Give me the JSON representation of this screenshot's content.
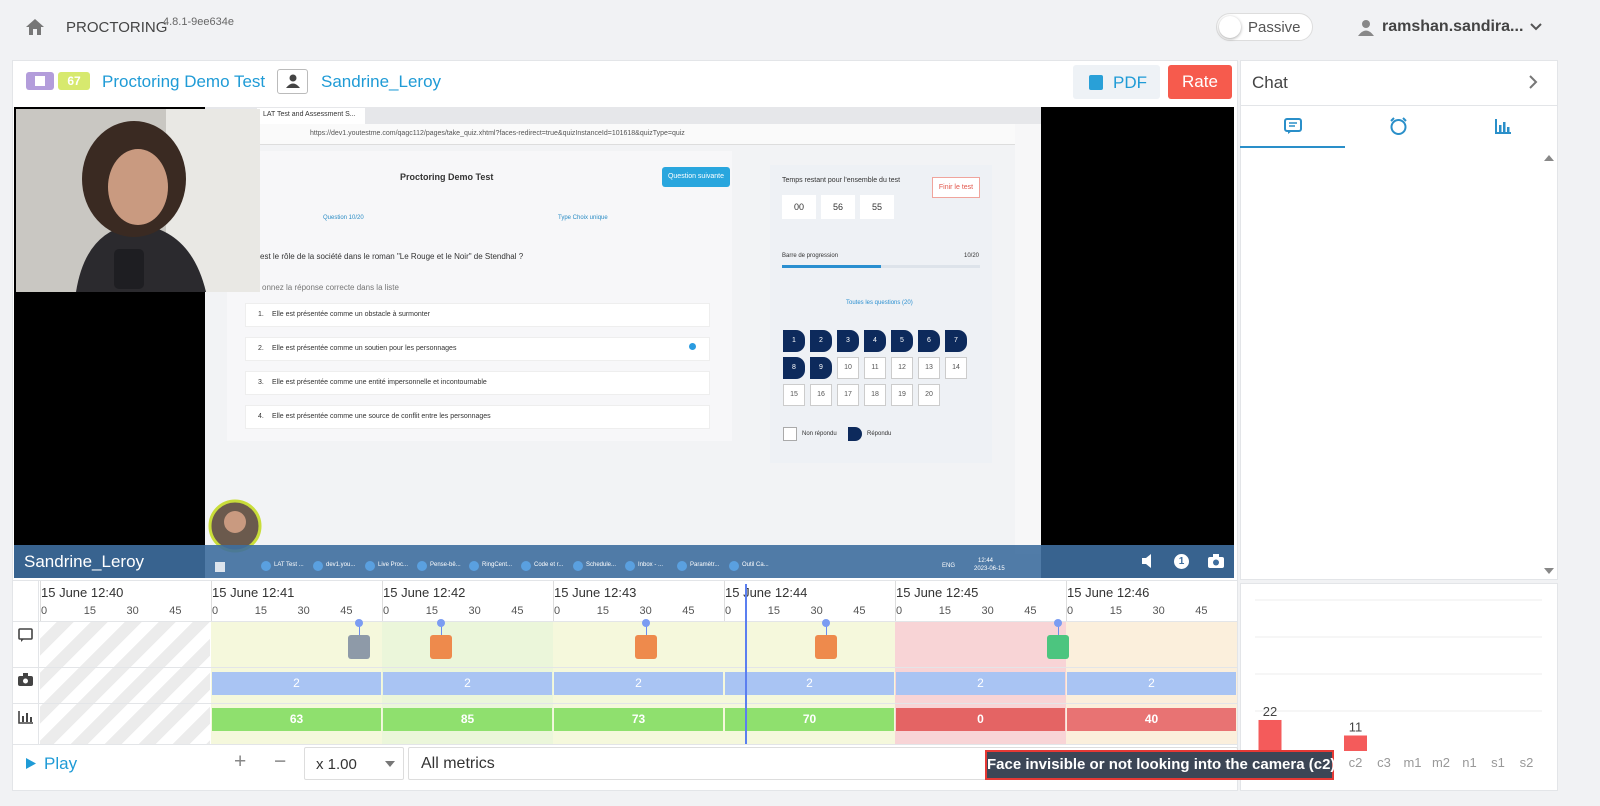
{
  "header": {
    "app": "PROCTORING",
    "version": "4.8.1-9ee634e",
    "mode": "Passive",
    "user": "ramshan.sandira..."
  },
  "toolbar": {
    "badge": "67",
    "test": "Proctoring Demo Test",
    "student": "Sandrine_Leroy",
    "pdf": "PDF",
    "rate": "Rate"
  },
  "screen": {
    "tab": "LAT Test and Assessment S...",
    "url": "https://dev1.youtestme.com/qagc112/pages/take_quiz.xhtml?faces-redirect=true&quizInstanceId=101618&quizType=quiz",
    "title": "Proctoring Demo Test",
    "next": "Question suivante",
    "question_no": "Question 10/20",
    "type": "Type Choix unique",
    "question": "est le rôle de la société dans le roman \"Le Rouge et le Noir\" de Stendhal ?",
    "instruction": "onnez la réponse correcte dans la liste",
    "options": [
      {
        "n": "1.",
        "text": "Elle est présentée comme un obstacle à surmonter"
      },
      {
        "n": "2.",
        "text": "Elle est présentée comme un soutien pour les personnages"
      },
      {
        "n": "3.",
        "text": "Elle est présentée comme une entité impersonnelle et incontournable"
      },
      {
        "n": "4.",
        "text": "Elle est présentée comme une source de conflit entre les personnages"
      }
    ],
    "timer_label": "Temps restant pour l'ensemble du test",
    "finish": "Finir le test",
    "timer": [
      "00",
      "56",
      "55"
    ],
    "progress_label": "Barre de progression",
    "progress": "10/20",
    "all_questions": "Toutes les questions (20)",
    "answered": [
      1,
      2,
      3,
      4,
      5,
      6,
      7,
      8,
      9
    ],
    "unanswered": [
      10,
      11,
      12,
      13,
      14,
      15,
      16,
      17,
      18,
      19,
      20
    ],
    "legend": [
      "Non répondu",
      "Répondu"
    ],
    "taskbar": [
      "LAT Test ...",
      "dev1.you...",
      "Live Proc...",
      "Pense-bê...",
      "RingCent...",
      "Code et r...",
      "Schedule...",
      "Inbox - ...",
      "Paramètr...",
      "Outil Ca..."
    ],
    "lang": "ENG",
    "clock": [
      "12:44",
      "2023-06-15"
    ]
  },
  "video": {
    "student": "Sandrine_Leroy",
    "flags": "1"
  },
  "timeline": {
    "minutes": [
      "15 June 12:40",
      "15 June 12:41",
      "15 June 12:42",
      "15 June 12:43",
      "15 June 12:44",
      "15 June 12:45",
      "15 June 12:46"
    ],
    "seconds": [
      0,
      15,
      30,
      45
    ],
    "camera": [
      2,
      2,
      2,
      2,
      2,
      2
    ],
    "metrics": [
      63,
      85,
      73,
      70,
      0,
      40
    ],
    "metric_colors": [
      "#8fe06e",
      "#8fe06e",
      "#8fe06e",
      "#8fe06e",
      "#e46464",
      "#e87373"
    ]
  },
  "controls": {
    "play": "Play",
    "zoom_in": "+",
    "zoom_out": "−",
    "speed": "x 1.00",
    "filter": "All metrics"
  },
  "tooltip": "Face invisible or not looking into the camera (c2)",
  "chat": {
    "title": "Chat"
  },
  "chart_data": {
    "type": "bar",
    "categories": [
      null,
      null,
      null,
      "c2",
      "c3",
      "m1",
      "m2",
      "n1",
      "s1",
      "s2"
    ],
    "values": [
      22,
      null,
      null,
      11,
      null,
      null,
      null,
      null,
      null,
      null
    ],
    "color": "#f45b5b",
    "ylim": [
      0,
      100
    ]
  }
}
